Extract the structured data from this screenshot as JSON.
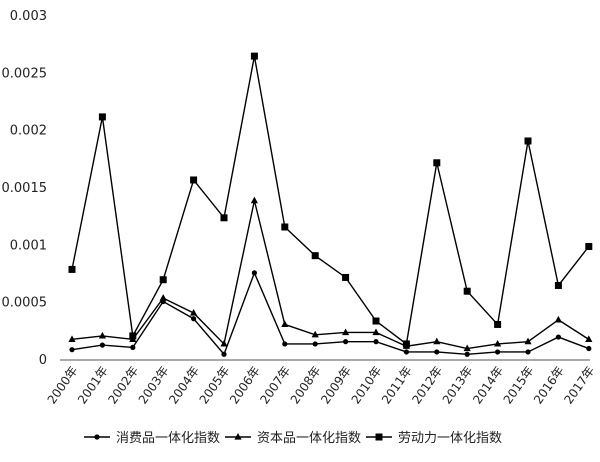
{
  "chart_data": {
    "type": "line",
    "title": "",
    "xlabel": "",
    "ylabel": "",
    "ylim": [
      0,
      0.003
    ],
    "yticks": [
      "0",
      "0.0005",
      "0.001",
      "0.0015",
      "0.002",
      "0.0025",
      "0.003"
    ],
    "categories": [
      "2000年",
      "2001年",
      "2002年",
      "2003年",
      "2004年",
      "2005年",
      "2006年",
      "2007年",
      "2008年",
      "2009年",
      "2010年",
      "2011年",
      "2012年",
      "2013年",
      "2014年",
      "2015年",
      "2016年",
      "2017年"
    ],
    "grid": false,
    "legend_position": "bottom",
    "series": [
      {
        "name": "消费品一体化指数",
        "marker": "circle",
        "values": [
          9e-05,
          0.00013,
          0.00011,
          0.00051,
          0.00036,
          5e-05,
          0.00076,
          0.00014,
          0.00014,
          0.00016,
          0.00016,
          7e-05,
          7e-05,
          5e-05,
          7e-05,
          7e-05,
          0.0002,
          0.0001
        ]
      },
      {
        "name": "资本品一体化指数",
        "marker": "triangle",
        "values": [
          0.00018,
          0.00021,
          0.00018,
          0.00054,
          0.00041,
          0.00014,
          0.00139,
          0.00031,
          0.00022,
          0.00024,
          0.00024,
          0.00012,
          0.00016,
          0.0001,
          0.00014,
          0.00016,
          0.00035,
          0.00018
        ]
      },
      {
        "name": "劳动力一体化指数",
        "marker": "square",
        "values": [
          0.00079,
          0.00212,
          0.00021,
          0.0007,
          0.00157,
          0.00124,
          0.00265,
          0.00116,
          0.00091,
          0.00072,
          0.00034,
          0.00014,
          0.00172,
          0.0006,
          0.00031,
          0.00191,
          0.00065,
          0.00099
        ]
      }
    ],
    "colors": {
      "line": "#000000",
      "text": "#222222"
    }
  }
}
